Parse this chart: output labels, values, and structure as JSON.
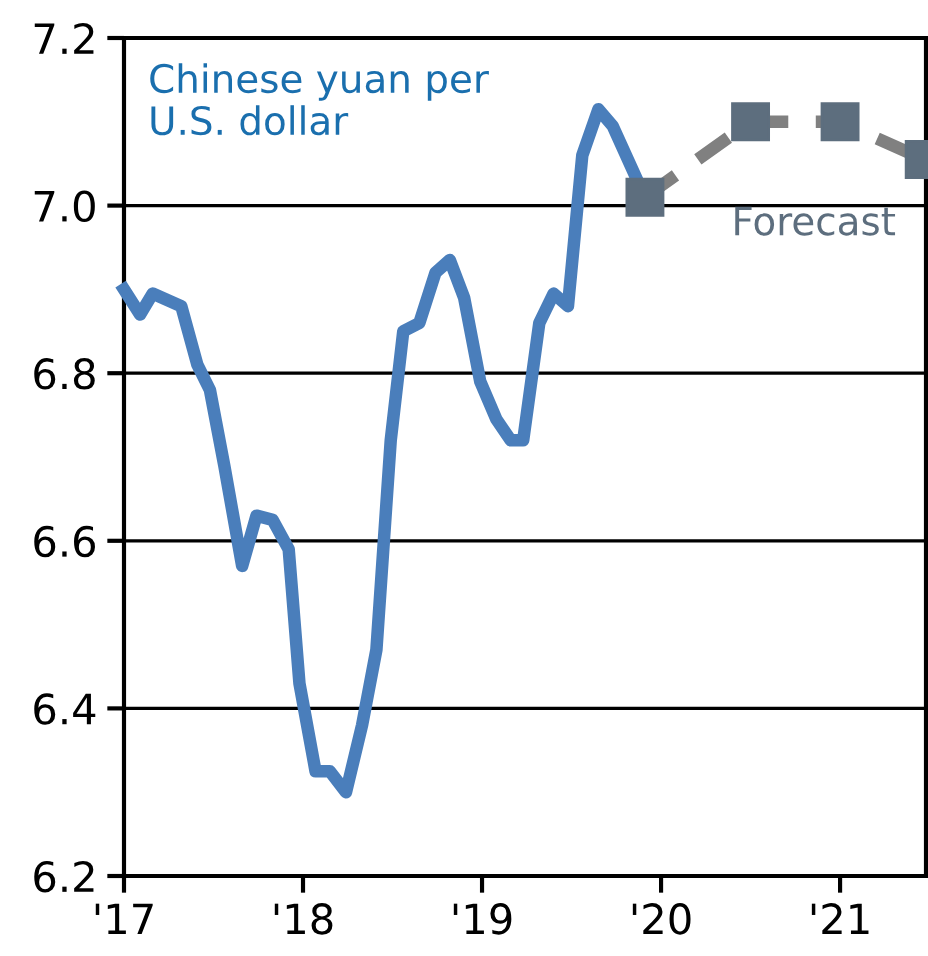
{
  "chart_data": {
    "type": "line",
    "series": [
      {
        "name": "Chinese yuan per\nU.S. dollar",
        "color": "#4a7ebb",
        "marker": "none",
        "line_style": "solid",
        "x": [
          2017.0,
          2017.09,
          2017.16,
          2017.32,
          2017.41,
          2017.48,
          2017.56,
          2017.66,
          2017.74,
          2017.83,
          2017.92,
          2017.98,
          2018.07,
          2018.15,
          2018.24,
          2018.33,
          2018.41,
          2018.49,
          2018.56,
          2018.65,
          2018.74,
          2018.82,
          2018.9,
          2018.99,
          2019.08,
          2019.16,
          2019.23,
          2019.32,
          2019.4,
          2019.48,
          2019.56,
          2019.65,
          2019.73,
          2019.91
        ],
        "values": [
          6.9,
          6.87,
          6.895,
          6.88,
          6.81,
          6.78,
          6.69,
          6.57,
          6.63,
          6.625,
          6.59,
          6.43,
          6.325,
          6.325,
          6.3,
          6.38,
          6.47,
          6.72,
          6.85,
          6.86,
          6.92,
          6.935,
          6.89,
          6.79,
          6.745,
          6.72,
          6.72,
          6.86,
          6.895,
          6.88,
          7.06,
          7.115,
          7.095,
          7.01
        ]
      },
      {
        "name": "Forecast",
        "color": "#5d6e7e",
        "marker": "square",
        "line_style": "dashed",
        "x": [
          2019.91,
          2020.5,
          2021.0,
          2021.47
        ],
        "values": [
          7.01,
          7.1,
          7.1,
          7.055
        ]
      }
    ],
    "xlim": [
      2017,
      2021.48
    ],
    "xticks": [
      {
        "value": 2017,
        "label": "'17"
      },
      {
        "value": 2018,
        "label": "'18"
      },
      {
        "value": 2019,
        "label": "'19"
      },
      {
        "value": 2020,
        "label": "'20"
      },
      {
        "value": 2021,
        "label": "'21"
      }
    ],
    "ylim": [
      6.2,
      7.2
    ],
    "yticks": [
      {
        "value": 6.2,
        "label": "6.2"
      },
      {
        "value": 6.4,
        "label": "6.4"
      },
      {
        "value": 6.6,
        "label": "6.6"
      },
      {
        "value": 6.8,
        "label": "6.8"
      },
      {
        "value": 7.0,
        "label": "7.0"
      },
      {
        "value": 7.2,
        "label": "7.2"
      }
    ],
    "grid": "y",
    "legend": false
  }
}
